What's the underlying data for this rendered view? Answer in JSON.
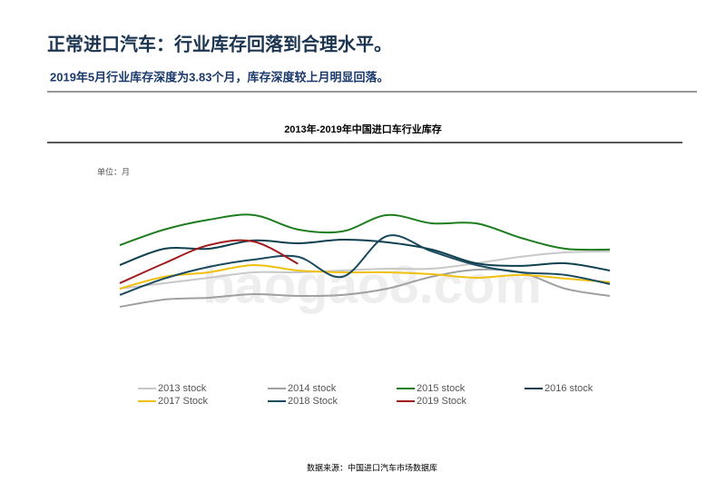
{
  "header": {
    "title": "正常进口汽车：行业库存回落到合理水平。",
    "subtitle": "2019年5月行业库存深度为3.83个月，库存深度较上月明显回落。"
  },
  "chart_data": {
    "type": "line",
    "title": "2013年-2019年中国进口车行业库存",
    "unit": "单位：月",
    "categories": [
      null,
      null,
      null,
      null,
      null,
      null,
      null,
      null,
      null,
      null,
      null,
      null
    ],
    "ylim": [
      0,
      7
    ],
    "series": [
      {
        "name": "2013 stock",
        "color": "#c8c8c8",
        "values": [
          2.87,
          3.08,
          3.29,
          3.5,
          3.5,
          3.57,
          3.64,
          3.64,
          3.85,
          4.1,
          4.27,
          4.31
        ]
      },
      {
        "name": "2014 stock",
        "color": "#a0a0a0",
        "values": [
          2.17,
          2.45,
          2.52,
          2.66,
          2.59,
          2.63,
          2.87,
          3.33,
          3.6,
          3.5,
          2.87,
          2.59
        ]
      },
      {
        "name": "2015 stock",
        "color": "#1e7d1e",
        "values": [
          4.55,
          5.15,
          5.53,
          5.71,
          5.15,
          5.08,
          5.71,
          5.39,
          5.39,
          4.83,
          4.41,
          4.38
        ]
      },
      {
        "name": "2016 stock",
        "color": "#0f4050",
        "values": [
          3.78,
          4.41,
          4.41,
          4.73,
          4.62,
          4.76,
          4.66,
          4.38,
          3.85,
          3.75,
          3.85,
          3.57
        ]
      },
      {
        "name": "2017 Stock",
        "color": "#f0c010",
        "values": [
          2.87,
          3.33,
          3.5,
          3.78,
          3.57,
          3.5,
          3.5,
          3.43,
          3.29,
          3.4,
          3.26,
          3.12
        ]
      },
      {
        "name": "2018 Stock",
        "color": "#1a4a5e",
        "values": [
          2.63,
          3.26,
          3.71,
          3.99,
          4.1,
          3.33,
          4.9,
          4.31,
          3.78,
          3.5,
          3.4,
          3.05
        ]
      },
      {
        "name": "2019 Stock",
        "color": "#a01c1c",
        "values": [
          3.08,
          3.85,
          4.55,
          4.69,
          3.83,
          null,
          null,
          null,
          null,
          null,
          null,
          null
        ]
      }
    ],
    "watermark": "baogao8.com"
  },
  "footer": {
    "source": "数据来源：中国进口汽车市场数据库"
  }
}
